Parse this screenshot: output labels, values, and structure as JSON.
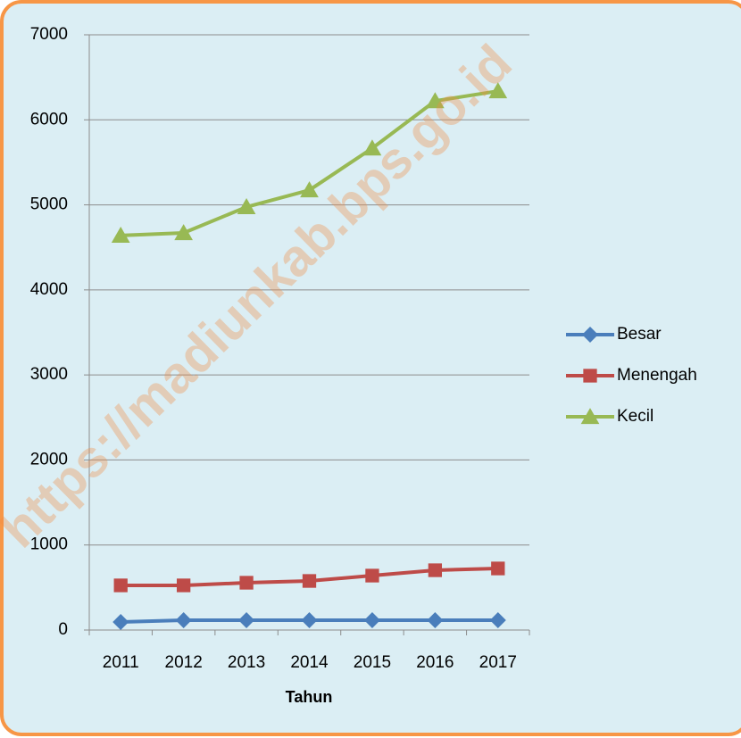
{
  "chart_data": {
    "type": "line",
    "x_label": "Tahun",
    "annotation": "https://madiunkab.bps.go.id",
    "categories": [
      "2011",
      "2012",
      "2013",
      "2014",
      "2015",
      "2016",
      "2017"
    ],
    "series": [
      {
        "name": "Besar",
        "color": "#4a7ebb",
        "marker": "diamond",
        "values": [
          94,
          115,
          115,
          115,
          115,
          115,
          115
        ]
      },
      {
        "name": "Menengah",
        "color": "#be4b48",
        "marker": "square",
        "values": [
          525,
          525,
          556,
          577,
          640,
          703,
          724
        ]
      },
      {
        "name": "Kecil",
        "color": "#98b954",
        "marker": "triangle",
        "values": [
          4640,
          4670,
          4975,
          5173,
          5666,
          6222,
          6338
        ]
      }
    ],
    "ylim": [
      0,
      7000
    ],
    "yticks": [
      0,
      1000,
      2000,
      3000,
      4000,
      5000,
      6000,
      7000
    ],
    "grid": true,
    "legend": "right"
  }
}
